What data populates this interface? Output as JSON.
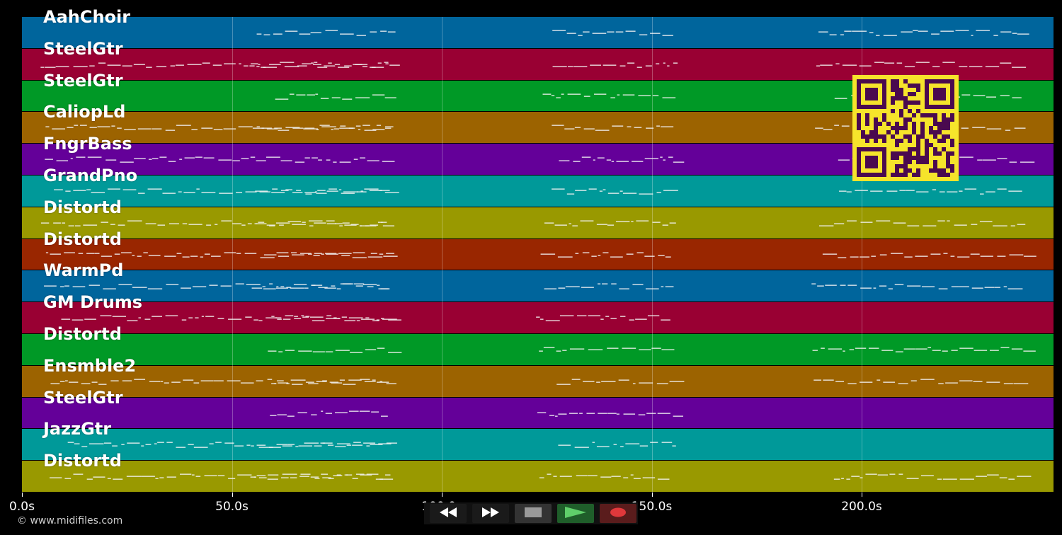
{
  "tracks": [
    {
      "name": "AahChoir",
      "color": "#00659c"
    },
    {
      "name": "SteelGtr",
      "color": "#990033"
    },
    {
      "name": "SteelGtr",
      "color": "#009926"
    },
    {
      "name": "CaliopLd",
      "color": "#9c6300"
    },
    {
      "name": "FngrBass",
      "color": "#640099"
    },
    {
      "name": "GrandPno",
      "color": "#009999"
    },
    {
      "name": "Distortd",
      "color": "#999900"
    },
    {
      "name": "Distortd",
      "color": "#992600"
    },
    {
      "name": "WarmPd",
      "color": "#00659c"
    },
    {
      "name": "GM Drums",
      "color": "#990033"
    },
    {
      "name": "Distortd",
      "color": "#009926"
    },
    {
      "name": "Ensmble2",
      "color": "#9c6300"
    },
    {
      "name": "SteelGtr",
      "color": "#640099"
    },
    {
      "name": "JazzGtr",
      "color": "#009999"
    },
    {
      "name": "Distortd",
      "color": "#999900"
    }
  ],
  "time_axis": {
    "ticks": [
      {
        "seconds": 0,
        "label": "0.0s"
      },
      {
        "seconds": 50,
        "label": "50.0s"
      },
      {
        "seconds": 100,
        "label": "100.0s"
      },
      {
        "seconds": 150,
        "label": "150.0s"
      },
      {
        "seconds": 200,
        "label": "200.0s"
      }
    ],
    "max_seconds": 245
  },
  "copyright": "© www.midifiles.com",
  "transport": [
    {
      "name": "rewind-button",
      "icon": "rewind-icon",
      "color": "#1a1a1a"
    },
    {
      "name": "fast-forward-button",
      "icon": "fast-forward-icon",
      "color": "#1a1a1a"
    },
    {
      "name": "stop-button",
      "icon": "stop-icon",
      "color": "#333333"
    },
    {
      "name": "play-button",
      "icon": "play-icon",
      "color": "#1f5e2a"
    },
    {
      "name": "record-button",
      "icon": "record-icon",
      "color": "#5a1c1c"
    }
  ],
  "qr_code": {
    "fg": "#4a0a4f",
    "bg": "#f6e42b"
  }
}
